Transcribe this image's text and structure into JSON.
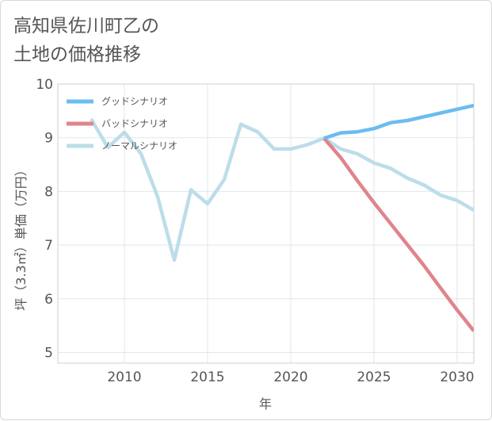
{
  "title_line1": "高知県佐川町乙の",
  "title_line2": "土地の価格推移",
  "chart_data": {
    "type": "line",
    "title": "高知県佐川町乙の土地の価格推移",
    "xlabel": "年",
    "ylabel": "坪（3.3㎡）単価（万円）",
    "xlim": [
      2006,
      2031
    ],
    "ylim": [
      4.8,
      10.0
    ],
    "xticks": [
      2010,
      2015,
      2020,
      2025,
      2030
    ],
    "yticks": [
      5,
      6,
      7,
      8,
      9,
      10
    ],
    "legend_position": "top-left",
    "series": [
      {
        "name": "グッドシナリオ",
        "color": "#6bbcf0",
        "x": [
          2022,
          2023,
          2024,
          2025,
          2026,
          2027,
          2028,
          2029,
          2030,
          2031
        ],
        "y": [
          8.99,
          9.09,
          9.11,
          9.17,
          9.28,
          9.32,
          9.39,
          9.46,
          9.53,
          9.6
        ]
      },
      {
        "name": "バッドシナリオ",
        "color": "#e0848c",
        "x": [
          2022,
          2023,
          2024,
          2025,
          2026,
          2027,
          2028,
          2029,
          2030,
          2031
        ],
        "y": [
          8.99,
          8.63,
          8.2,
          7.79,
          7.4,
          7.01,
          6.62,
          6.2,
          5.79,
          5.4
        ]
      },
      {
        "name": "ノーマルシナリオ",
        "color": "#bcdde9",
        "x": [
          2008,
          2009,
          2010,
          2011,
          2012,
          2013,
          2014,
          2015,
          2016,
          2017,
          2018,
          2019,
          2020,
          2021,
          2022,
          2023,
          2024,
          2025,
          2026,
          2027,
          2028,
          2029,
          2030,
          2031
        ],
        "y": [
          9.35,
          8.82,
          9.1,
          8.7,
          7.9,
          6.72,
          8.03,
          7.77,
          8.22,
          9.25,
          9.11,
          8.79,
          8.79,
          8.87,
          8.99,
          8.79,
          8.7,
          8.53,
          8.43,
          8.25,
          8.12,
          7.93,
          7.83,
          7.65
        ]
      }
    ]
  }
}
